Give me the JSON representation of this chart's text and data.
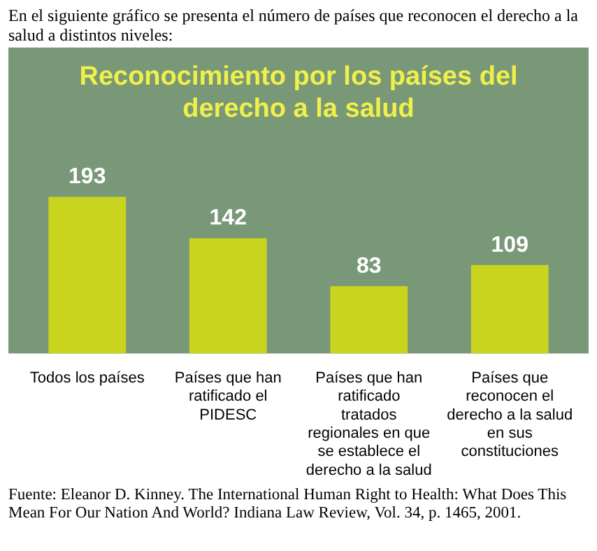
{
  "chart_data": {
    "type": "bar",
    "title": "Reconocimiento por los países del derecho a la salud",
    "subtitle": "En el siguiente gráfico se presenta el número de países que reconocen el derecho a la salud a distintos niveles:",
    "categories": [
      "Todos los países",
      "Países que han ratificado el PIDESC",
      "Países que han ratificado tratados regionales en que se establece el derecho a la salud",
      "Países que reconocen el derecho a la salud en sus constituciones"
    ],
    "values": [
      193,
      142,
      83,
      109
    ],
    "color": "#c8d41e",
    "data_labels": true,
    "annotations": [
      "Fuente: Eleanor D. Kinney. The International Human Right to Health: What Does This Mean For Our Nation And World? Indiana Law Review, Vol. 34, p. 1465, 2001."
    ]
  }
}
